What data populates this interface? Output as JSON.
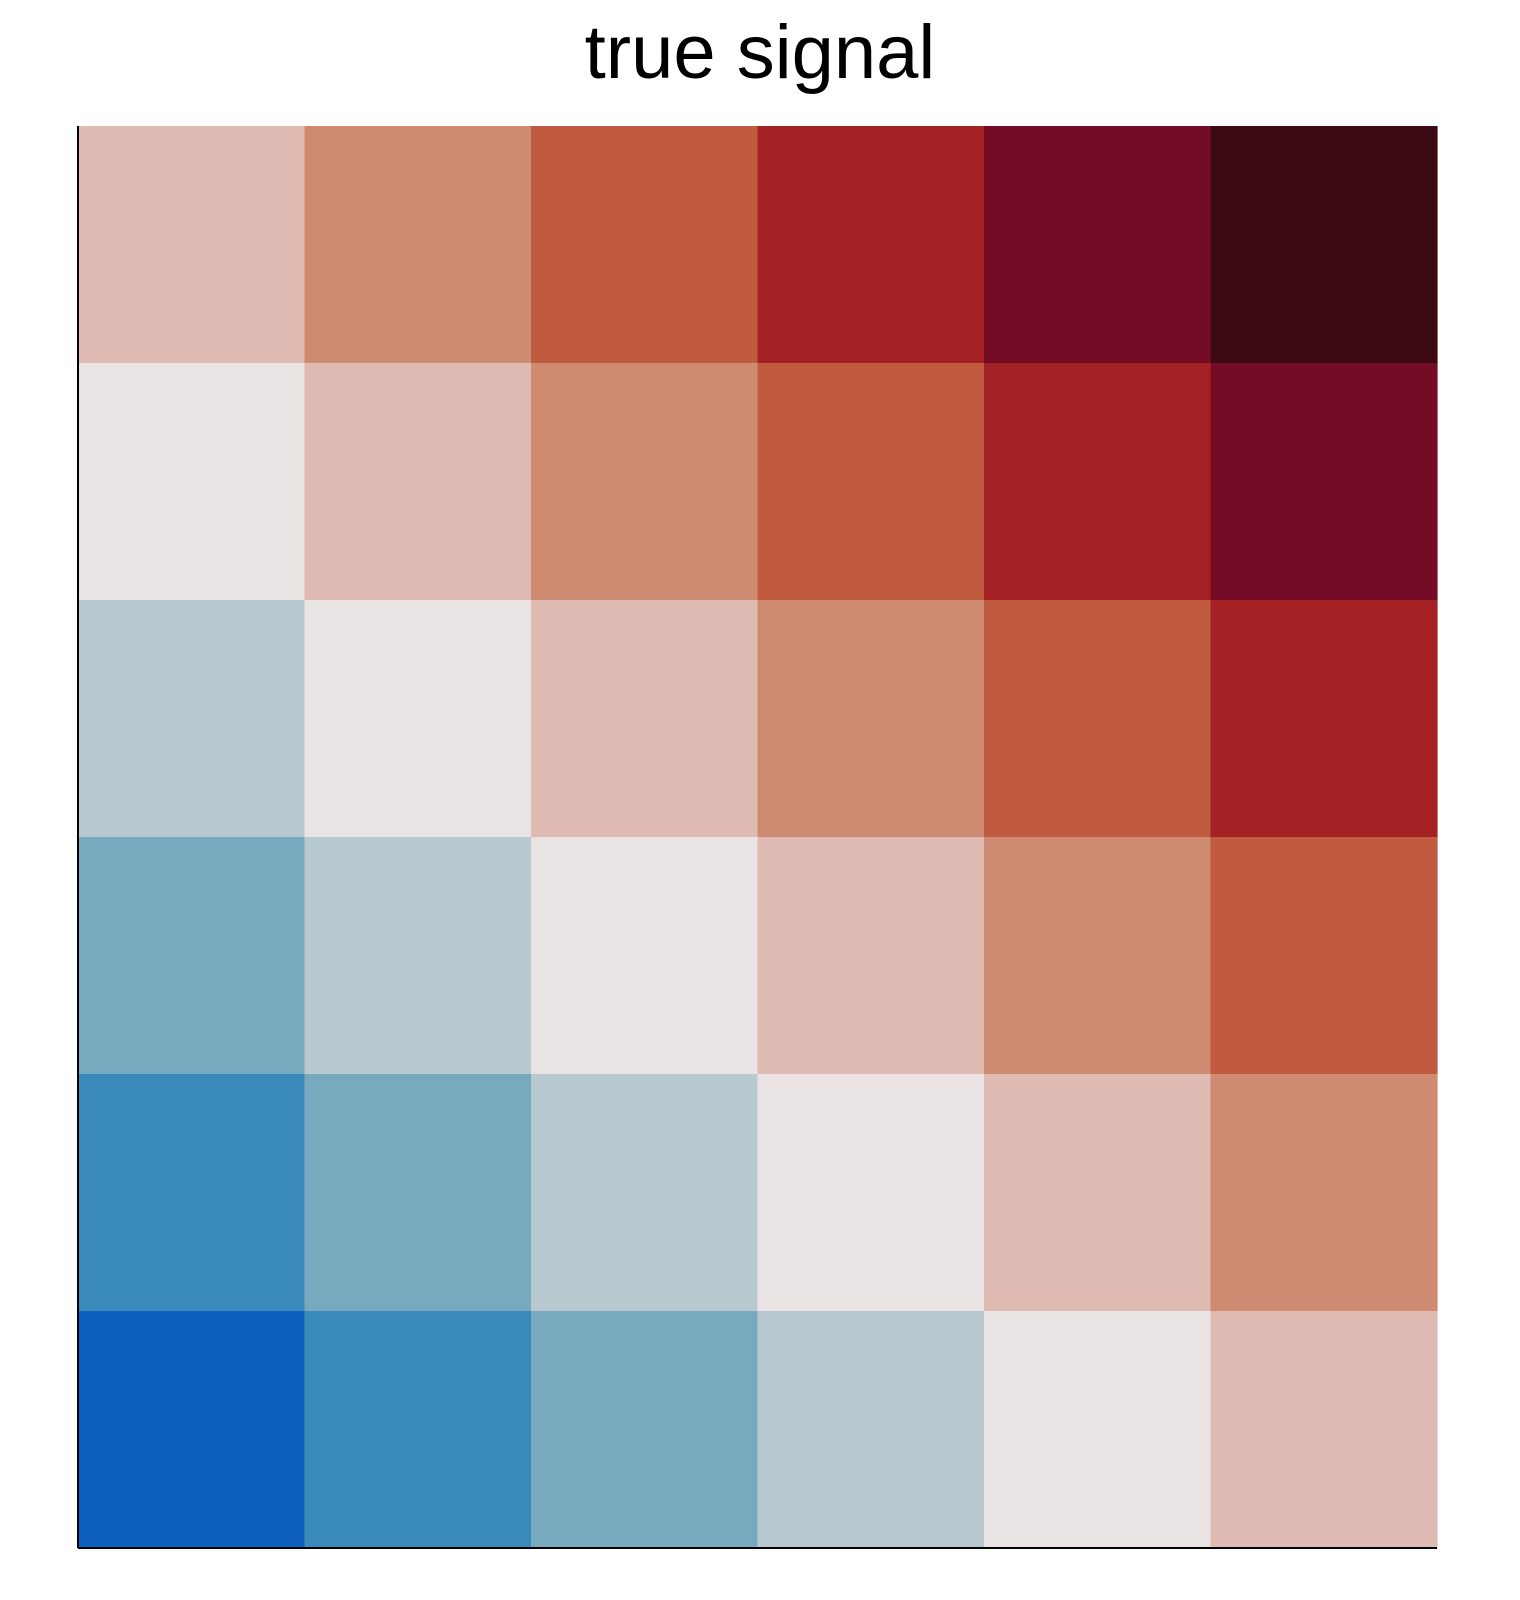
{
  "chart_data": {
    "type": "heatmap",
    "title": "true signal",
    "xlabel": "",
    "ylabel": "",
    "rows": 6,
    "cols": 6,
    "values": [
      [
        1,
        2,
        3,
        4,
        5,
        6
      ],
      [
        0,
        1,
        2,
        3,
        4,
        5
      ],
      [
        -1,
        0,
        1,
        2,
        3,
        4
      ],
      [
        -2,
        -1,
        0,
        1,
        2,
        3
      ],
      [
        -3,
        -2,
        -1,
        0,
        1,
        2
      ],
      [
        -4,
        -3,
        -2,
        -1,
        0,
        1
      ]
    ],
    "color_scale": {
      "-4": "#0d60be",
      "-3": "#3989bb",
      "-2": "#77aabf",
      "-1": "#b9c9d0",
      "0": "#e9e3e3",
      "1": "#dfbbb3",
      "2": "#cf8b72",
      "3": "#c05b3f",
      "4": "#a52224",
      "5": "#740c26",
      "6": "#3c0912"
    },
    "grid": false,
    "legend": "none",
    "axis_color": "#000000"
  }
}
